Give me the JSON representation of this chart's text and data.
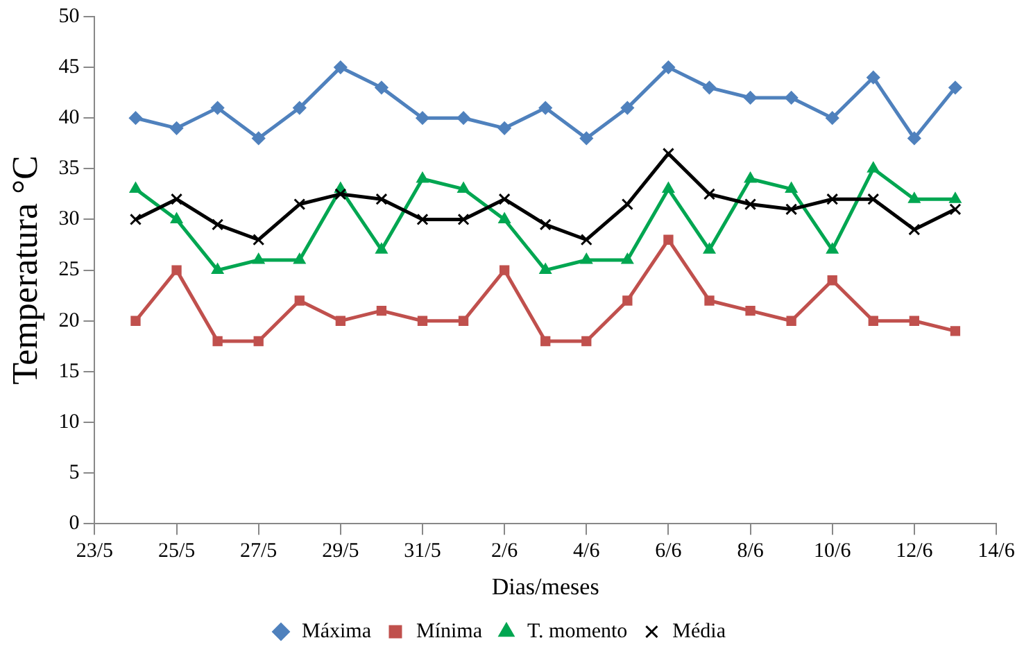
{
  "chart_data": {
    "type": "line",
    "xlabel": "Dias/meses",
    "ylabel": "Temperatura °C",
    "x": [
      "--05-24",
      "--05-25",
      "--05-26",
      "--05-27",
      "--05-28",
      "--05-29",
      "--05-30",
      "--05-31",
      "--06-01",
      "--06-02",
      "--06-03",
      "--06-04",
      "--06-05",
      "--06-06",
      "--06-07",
      "--06-08",
      "--06-09",
      "--06-10",
      "--06-11",
      "--06-12",
      "--06-13"
    ],
    "xlim": [
      "--05-23",
      "--06-14"
    ],
    "xticks": [
      {
        "value": "--05-23",
        "label": "23/5"
      },
      {
        "value": "--05-25",
        "label": "25/5"
      },
      {
        "value": "--05-27",
        "label": "27/5"
      },
      {
        "value": "--05-29",
        "label": "29/5"
      },
      {
        "value": "--05-31",
        "label": "31/5"
      },
      {
        "value": "--06-02",
        "label": "2/6"
      },
      {
        "value": "--06-04",
        "label": "4/6"
      },
      {
        "value": "--06-06",
        "label": "6/6"
      },
      {
        "value": "--06-08",
        "label": "8/6"
      },
      {
        "value": "--06-10",
        "label": "10/6"
      },
      {
        "value": "--06-12",
        "label": "12/6"
      },
      {
        "value": "--06-14",
        "label": "14/6"
      }
    ],
    "ylim": [
      0,
      50
    ],
    "yticks": [
      0,
      5,
      10,
      15,
      20,
      25,
      30,
      35,
      40,
      45,
      50
    ],
    "grid": false,
    "legend": "bottom",
    "line_style": "solid",
    "series": [
      {
        "name": "Máxima",
        "color": "#4f81bd",
        "marker": "diamond",
        "values": [
          40,
          39,
          41,
          38,
          41,
          45,
          43,
          40,
          40,
          39,
          41,
          38,
          41,
          45,
          43,
          42,
          42,
          40,
          44,
          38,
          43
        ]
      },
      {
        "name": "Mínima",
        "color": "#c0504d",
        "marker": "square",
        "values": [
          20,
          25,
          18,
          18,
          22,
          20,
          21,
          20,
          20,
          25,
          18,
          18,
          22,
          28,
          22,
          21,
          20,
          24,
          20,
          20,
          19
        ]
      },
      {
        "name": "T. momento",
        "color": "#00a651",
        "marker": "triangle",
        "values": [
          33,
          30,
          25,
          26,
          26,
          33,
          27,
          34,
          33,
          30,
          25,
          26,
          26,
          33,
          27,
          34,
          33,
          27,
          35,
          32,
          32
        ]
      },
      {
        "name": "Média",
        "color": "#000000",
        "marker": "cross",
        "values": [
          30,
          32,
          29.5,
          28,
          31.5,
          32.5,
          32,
          30,
          30,
          32,
          29.5,
          28,
          31.5,
          36.5,
          32.5,
          31.5,
          31,
          32,
          32,
          29,
          31
        ]
      }
    ]
  }
}
